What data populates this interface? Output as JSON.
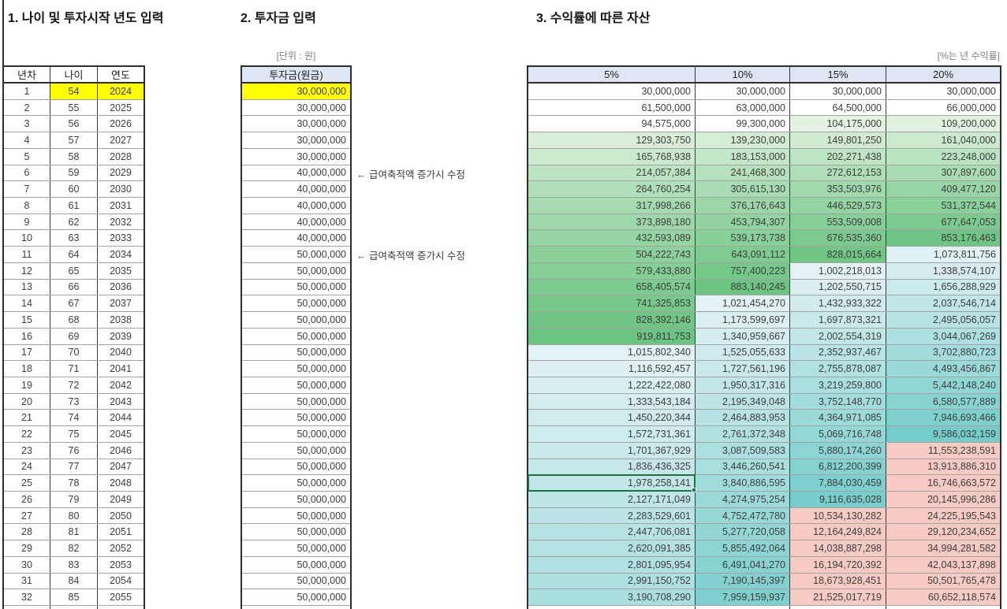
{
  "titles": {
    "section1": "1. 나이 및 투자시작 년도 입력",
    "section2": "2. 투자금 입력",
    "section3": "3. 수익률에 따른 자산"
  },
  "labels": {
    "unit_won": "[단위 : 원]",
    "unit_rate": "[%는 년 수익률]"
  },
  "table1": {
    "headers": [
      "년차",
      "나이",
      "연도"
    ],
    "highlight": {
      "row": 1,
      "cols": [
        1,
        2
      ],
      "color": "#ffff00"
    },
    "rows": [
      [
        1,
        54,
        2024
      ],
      [
        2,
        55,
        2025
      ],
      [
        3,
        56,
        2026
      ],
      [
        4,
        57,
        2027
      ],
      [
        5,
        58,
        2028
      ],
      [
        6,
        59,
        2029
      ],
      [
        7,
        60,
        2030
      ],
      [
        8,
        61,
        2031
      ],
      [
        9,
        62,
        2032
      ],
      [
        10,
        63,
        2033
      ],
      [
        11,
        64,
        2034
      ],
      [
        12,
        65,
        2035
      ],
      [
        13,
        66,
        2036
      ],
      [
        14,
        67,
        2037
      ],
      [
        15,
        68,
        2038
      ],
      [
        16,
        69,
        2039
      ],
      [
        17,
        70,
        2040
      ],
      [
        18,
        71,
        2041
      ],
      [
        19,
        72,
        2042
      ],
      [
        20,
        73,
        2043
      ],
      [
        21,
        74,
        2044
      ],
      [
        22,
        75,
        2045
      ],
      [
        23,
        76,
        2046
      ],
      [
        24,
        77,
        2047
      ],
      [
        25,
        78,
        2048
      ],
      [
        26,
        79,
        2049
      ],
      [
        27,
        80,
        2050
      ],
      [
        28,
        81,
        2051
      ],
      [
        29,
        82,
        2052
      ],
      [
        30,
        83,
        2053
      ],
      [
        31,
        84,
        2054
      ],
      [
        32,
        85,
        2055
      ]
    ]
  },
  "table2": {
    "header": "투자금(원금)",
    "highlight": {
      "row": 1,
      "color": "#ffff00"
    },
    "values": [
      30000000,
      30000000,
      30000000,
      30000000,
      30000000,
      40000000,
      40000000,
      40000000,
      40000000,
      40000000,
      50000000,
      50000000,
      50000000,
      50000000,
      50000000,
      50000000,
      50000000,
      50000000,
      50000000,
      50000000,
      50000000,
      50000000,
      50000000,
      50000000,
      50000000,
      50000000,
      50000000,
      50000000,
      50000000,
      50000000,
      50000000,
      50000000
    ],
    "annotations": [
      {
        "row": 6,
        "text": "← 급여축적액 증가시 수정"
      },
      {
        "row": 11,
        "text": "← 급여축적액 증가시 수정"
      }
    ]
  },
  "table3": {
    "headers": [
      "5%",
      "10%",
      "15%",
      "20%"
    ],
    "selected_cell": {
      "row": 25,
      "col": 1,
      "value": 1978258141
    },
    "rows": [
      [
        30000000,
        30000000,
        30000000,
        30000000
      ],
      [
        61500000,
        63000000,
        64500000,
        66000000
      ],
      [
        94575000,
        99300000,
        104175000,
        109200000
      ],
      [
        129303750,
        139230000,
        149801250,
        161040000
      ],
      [
        165768938,
        183153000,
        202271438,
        223248000
      ],
      [
        214057384,
        241468300,
        272612153,
        307897600
      ],
      [
        264760254,
        305615130,
        353503976,
        409477120
      ],
      [
        317998266,
        376176643,
        446529573,
        531372544
      ],
      [
        373898180,
        453794307,
        553509008,
        677647053
      ],
      [
        432593089,
        539173738,
        676535360,
        853176463
      ],
      [
        504222743,
        643091112,
        828015664,
        1073811756
      ],
      [
        579433880,
        757400223,
        1002218013,
        1338574107
      ],
      [
        658405574,
        883140245,
        1202550715,
        1656288929
      ],
      [
        741325853,
        1021454270,
        1432933322,
        2037546714
      ],
      [
        828392146,
        1173599697,
        1697873321,
        2495056057
      ],
      [
        919811753,
        1340959667,
        2002554319,
        3044067269
      ],
      [
        1015802340,
        1525055633,
        2352937467,
        3702880723
      ],
      [
        1116592457,
        1727561196,
        2755878087,
        4493456867
      ],
      [
        1222422080,
        1950317316,
        3219259800,
        5442148240
      ],
      [
        1333543184,
        2195349048,
        3752148770,
        6580577889
      ],
      [
        1450220344,
        2464883953,
        4364971085,
        7946693466
      ],
      [
        1572731361,
        2761372348,
        5069716748,
        9586032159
      ],
      [
        1701367929,
        3087509583,
        5880174260,
        11553238591
      ],
      [
        1836436325,
        3446260541,
        6812200399,
        13913886310
      ],
      [
        1978258141,
        3840886595,
        7884030459,
        16746663572
      ],
      [
        2127171049,
        4274975254,
        9116635028,
        20145996286
      ],
      [
        2283529601,
        4752472780,
        10534130282,
        24225195543
      ],
      [
        2447706081,
        5277720058,
        12164249824,
        29120234652
      ],
      [
        2620091385,
        5855492064,
        14038887298,
        34994281582
      ],
      [
        2801095954,
        6491041270,
        16194720392,
        42043137898
      ],
      [
        2991150752,
        7190145397,
        18673928451,
        50501765478
      ],
      [
        3190708290,
        7959159937,
        21525017719,
        60652118574
      ]
    ]
  },
  "color_rules": {
    "white_below": 100000000,
    "green_band": [
      100000000,
      1000000000
    ],
    "green_colors": [
      "#e7f4e4",
      "#66c27e"
    ],
    "blue_band": [
      1000000000,
      10000000000
    ],
    "blue_colors": [
      "#e4f2f5",
      "#72ccca"
    ],
    "pink_at": 10000000000,
    "pink_color": "#f8cac4",
    "header_fill": "#dde6f2",
    "selection_color": "#1e7145"
  }
}
